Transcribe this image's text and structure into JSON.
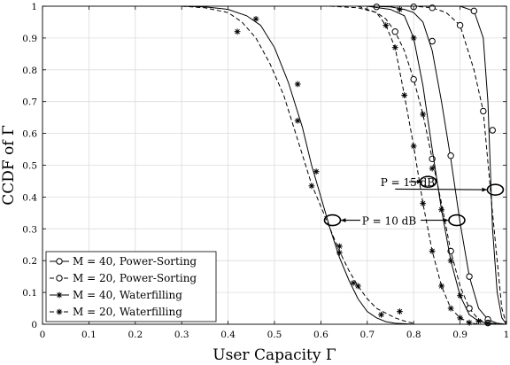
{
  "chart_data": {
    "type": "line",
    "xlabel": "User Capacity Γ",
    "ylabel": "CCDF of Γ",
    "xlim": [
      0,
      1
    ],
    "ylim": [
      0,
      1
    ],
    "xticks": [
      "0",
      "0.1",
      "0.2",
      "0.3",
      "0.4",
      "0.5",
      "0.6",
      "0.7",
      "0.8",
      "0.9",
      "1"
    ],
    "yticks": [
      "0",
      "0.1",
      "0.2",
      "0.3",
      "0.4",
      "0.5",
      "0.6",
      "0.7",
      "0.8",
      "0.9",
      "1"
    ],
    "grid": true,
    "legend_position": "bottom-left",
    "series": [
      {
        "name": "M = 40, Power-Sorting",
        "group": "P = 15 dB",
        "linestyle": "solid",
        "marker": "circle",
        "x": [
          0.8,
          0.9,
          0.93,
          0.95,
          0.96,
          0.97,
          0.98,
          0.99,
          1.0
        ],
        "y": [
          1.0,
          1.0,
          0.985,
          0.9,
          0.7,
          0.3,
          0.1,
          0.02,
          0.0
        ],
        "marker_x": [
          0.93,
          0.97
        ],
        "marker_y": [
          0.985,
          0.61
        ]
      },
      {
        "name": "M = 20, Power-Sorting",
        "group": "P = 15 dB",
        "linestyle": "dashed",
        "marker": "circle",
        "x": [
          0.75,
          0.8,
          0.84,
          0.87,
          0.9,
          0.93,
          0.95,
          0.97,
          0.99,
          1.0
        ],
        "y": [
          1.0,
          1.0,
          0.995,
          0.98,
          0.94,
          0.8,
          0.67,
          0.35,
          0.05,
          0.0
        ],
        "marker_x": [
          0.84,
          0.9,
          0.95
        ],
        "marker_y": [
          0.995,
          0.94,
          0.67
        ]
      },
      {
        "name": "M = 40, Power-Sorting",
        "group": "P = 10 dB",
        "linestyle": "solid",
        "marker": "circle",
        "x": [
          0.7,
          0.75,
          0.78,
          0.8,
          0.82,
          0.84,
          0.86,
          0.88,
          0.9,
          0.92,
          0.94,
          0.96,
          0.98,
          1.0
        ],
        "y": [
          1.0,
          0.998,
          0.99,
          0.98,
          0.95,
          0.86,
          0.7,
          0.52,
          0.32,
          0.15,
          0.05,
          0.015,
          0.003,
          0.0
        ],
        "marker_x": [
          0.72,
          0.8,
          0.84,
          0.88,
          0.92,
          0.96
        ],
        "marker_y": [
          0.998,
          0.998,
          0.89,
          0.53,
          0.15,
          0.015
        ]
      },
      {
        "name": "M = 20, Power-Sorting",
        "group": "P = 10 dB",
        "linestyle": "dashed",
        "marker": "circle",
        "x": [
          0.62,
          0.68,
          0.72,
          0.74,
          0.76,
          0.78,
          0.8,
          0.82,
          0.84,
          0.86,
          0.88,
          0.9,
          0.92,
          0.94,
          0.96,
          1.0
        ],
        "y": [
          1.0,
          0.995,
          0.98,
          0.96,
          0.92,
          0.86,
          0.77,
          0.66,
          0.52,
          0.38,
          0.23,
          0.12,
          0.05,
          0.015,
          0.004,
          0.0
        ],
        "marker_x": [
          0.76,
          0.8,
          0.84,
          0.88,
          0.92,
          0.96
        ],
        "marker_y": [
          0.92,
          0.77,
          0.52,
          0.23,
          0.05,
          0.004
        ]
      },
      {
        "name": "M = 40, Waterfilling",
        "group": "P = 15 dB",
        "linestyle": "solid",
        "marker": "star",
        "x": [
          0.7,
          0.75,
          0.78,
          0.8,
          0.82,
          0.84,
          0.86,
          0.88,
          0.9,
          0.92,
          0.94,
          0.96,
          0.98,
          1.0
        ],
        "y": [
          1.0,
          0.99,
          0.97,
          0.9,
          0.75,
          0.55,
          0.36,
          0.2,
          0.09,
          0.03,
          0.01,
          0.003,
          0.0,
          0.0
        ],
        "marker_x": [
          0.77,
          0.8,
          0.82,
          0.84,
          0.86,
          0.88,
          0.9,
          0.94,
          0.96
        ],
        "marker_y": [
          0.99,
          0.9,
          0.66,
          0.49,
          0.36,
          0.2,
          0.09,
          0.01,
          0.003
        ]
      },
      {
        "name": "M = 20, Waterfilling",
        "group": "P = 15 dB",
        "linestyle": "dashed",
        "marker": "star",
        "x": [
          0.68,
          0.72,
          0.74,
          0.76,
          0.78,
          0.8,
          0.82,
          0.84,
          0.86,
          0.88,
          0.9,
          0.92,
          0.94,
          1.0
        ],
        "y": [
          1.0,
          0.98,
          0.94,
          0.87,
          0.72,
          0.56,
          0.38,
          0.23,
          0.12,
          0.05,
          0.02,
          0.005,
          0.0,
          0.0
        ],
        "marker_x": [
          0.74,
          0.76,
          0.78,
          0.8,
          0.82,
          0.84,
          0.86,
          0.88,
          0.9,
          0.92
        ],
        "marker_y": [
          0.94,
          0.87,
          0.72,
          0.56,
          0.38,
          0.23,
          0.12,
          0.05,
          0.02,
          0.005
        ]
      },
      {
        "name": "M = 40, Waterfilling",
        "group": "P = 10 dB",
        "linestyle": "solid",
        "marker": "star",
        "x": [
          0.3,
          0.35,
          0.4,
          0.44,
          0.47,
          0.5,
          0.53,
          0.56,
          0.58,
          0.6,
          0.62,
          0.64,
          0.66,
          0.68,
          0.7,
          0.72,
          0.74,
          0.76,
          0.8
        ],
        "y": [
          1.0,
          0.998,
          0.99,
          0.97,
          0.94,
          0.87,
          0.76,
          0.62,
          0.5,
          0.4,
          0.3,
          0.21,
          0.14,
          0.08,
          0.04,
          0.02,
          0.008,
          0.003,
          0.0
        ],
        "marker_x": [
          0.46,
          0.55,
          0.59,
          0.64,
          0.67,
          0.73
        ],
        "marker_y": [
          0.96,
          0.755,
          0.48,
          0.245,
          0.13,
          0.03
        ]
      },
      {
        "name": "M = 20, Waterfilling",
        "group": "P = 10 dB",
        "linestyle": "dashed",
        "marker": "star",
        "x": [
          0.3,
          0.35,
          0.4,
          0.43,
          0.46,
          0.49,
          0.52,
          0.55,
          0.58,
          0.6,
          0.62,
          0.64,
          0.66,
          0.68,
          0.7,
          0.72,
          0.74,
          0.76,
          0.78,
          0.8
        ],
        "y": [
          1.0,
          0.995,
          0.98,
          0.95,
          0.9,
          0.82,
          0.72,
          0.58,
          0.44,
          0.37,
          0.3,
          0.23,
          0.17,
          0.12,
          0.08,
          0.05,
          0.035,
          0.02,
          0.01,
          0.003
        ],
        "marker_x": [
          0.42,
          0.55,
          0.58,
          0.64,
          0.68,
          0.77
        ],
        "marker_y": [
          0.92,
          0.64,
          0.435,
          0.225,
          0.12,
          0.04
        ]
      }
    ],
    "annotations": [
      {
        "text": "P = 15 dB",
        "x_label": 0.74,
        "y_label": 0.445
      },
      {
        "text": "P = 10 dB",
        "x_label": 0.7,
        "y_label": 0.325
      }
    ]
  }
}
